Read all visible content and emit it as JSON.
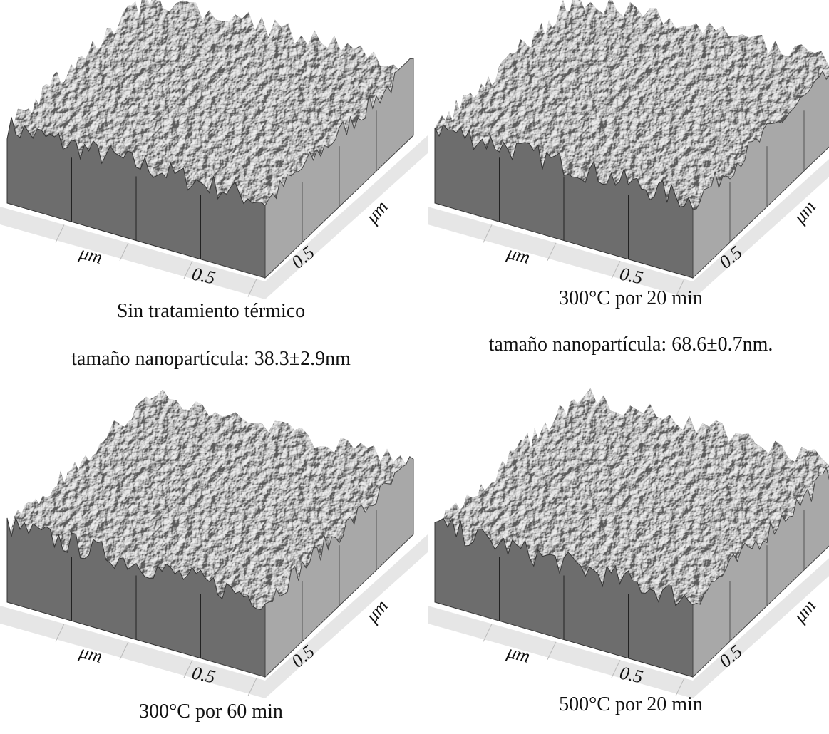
{
  "panels": [
    {
      "x_axis_label": "μm",
      "x_axis_tick": "0.5",
      "y_axis_label": "μm",
      "y_axis_tick": "0.5",
      "caption": "Sin tratamiento térmico",
      "subcaption": "tamaño nanopartícula: 38.3±2.9nm"
    },
    {
      "x_axis_label": "μm",
      "x_axis_tick": "0.5",
      "y_axis_label": "μm",
      "y_axis_tick": "0.5",
      "caption": "300°C por 20 min",
      "subcaption": "tamaño nanopartícula: 68.6±0.7nm."
    },
    {
      "x_axis_label": "μm",
      "x_axis_tick": "0.5",
      "y_axis_label": "μm",
      "y_axis_tick": "0.5",
      "caption": "300°C por 60 min"
    },
    {
      "x_axis_label": "μm",
      "x_axis_tick": "0.5",
      "y_axis_label": "μm",
      "y_axis_tick": "0.5",
      "caption": "500°C por 20 min"
    }
  ]
}
